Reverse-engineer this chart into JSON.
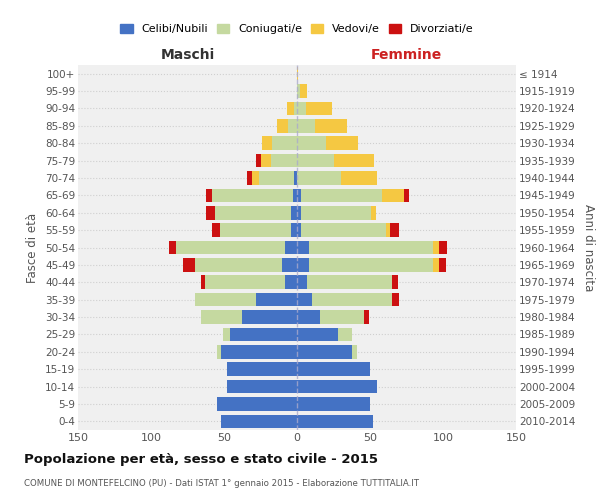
{
  "age_groups": [
    "0-4",
    "5-9",
    "10-14",
    "15-19",
    "20-24",
    "25-29",
    "30-34",
    "35-39",
    "40-44",
    "45-49",
    "50-54",
    "55-59",
    "60-64",
    "65-69",
    "70-74",
    "75-79",
    "80-84",
    "85-89",
    "90-94",
    "95-99",
    "100+"
  ],
  "birth_years": [
    "2010-2014",
    "2005-2009",
    "2000-2004",
    "1995-1999",
    "1990-1994",
    "1985-1989",
    "1980-1984",
    "1975-1979",
    "1970-1974",
    "1965-1969",
    "1960-1964",
    "1955-1959",
    "1950-1954",
    "1945-1949",
    "1940-1944",
    "1935-1939",
    "1930-1934",
    "1925-1929",
    "1920-1924",
    "1915-1919",
    "≤ 1914"
  ],
  "maschi": {
    "celibi": [
      52,
      55,
      48,
      48,
      52,
      46,
      38,
      28,
      8,
      10,
      8,
      4,
      4,
      3,
      2,
      0,
      0,
      0,
      0,
      0,
      0
    ],
    "coniugati": [
      0,
      0,
      0,
      0,
      3,
      5,
      28,
      42,
      55,
      60,
      75,
      49,
      52,
      55,
      24,
      18,
      17,
      6,
      2,
      0,
      0
    ],
    "vedovi": [
      0,
      0,
      0,
      0,
      0,
      0,
      0,
      0,
      0,
      0,
      0,
      0,
      0,
      0,
      5,
      7,
      7,
      8,
      5,
      0,
      0
    ],
    "divorziati": [
      0,
      0,
      0,
      0,
      0,
      0,
      0,
      0,
      3,
      8,
      5,
      5,
      6,
      4,
      3,
      3,
      0,
      0,
      0,
      0,
      0
    ]
  },
  "femmine": {
    "nubili": [
      52,
      50,
      55,
      50,
      38,
      28,
      16,
      10,
      7,
      8,
      8,
      3,
      3,
      3,
      0,
      0,
      0,
      0,
      0,
      0,
      0
    ],
    "coniugate": [
      0,
      0,
      0,
      0,
      3,
      10,
      30,
      55,
      58,
      85,
      85,
      58,
      48,
      55,
      30,
      25,
      20,
      12,
      6,
      2,
      0
    ],
    "vedove": [
      0,
      0,
      0,
      0,
      0,
      0,
      0,
      0,
      0,
      4,
      4,
      3,
      3,
      15,
      25,
      28,
      22,
      22,
      18,
      5,
      1
    ],
    "divorziate": [
      0,
      0,
      0,
      0,
      0,
      0,
      3,
      5,
      4,
      5,
      6,
      6,
      0,
      4,
      0,
      0,
      0,
      0,
      0,
      0,
      0
    ]
  },
  "colors": {
    "celibi_nubili": "#4472C4",
    "coniugati": "#C5D9A0",
    "vedovi": "#F5C842",
    "divorziati": "#CC1111"
  },
  "title": "Popolazione per età, sesso e stato civile - 2015",
  "subtitle": "COMUNE DI MONTEFELCINO (PU) - Dati ISTAT 1° gennaio 2015 - Elaborazione TUTTITALIA.IT",
  "xlabel_left": "Maschi",
  "xlabel_right": "Femmine",
  "ylabel_left": "Fasce di età",
  "ylabel_right": "Anni di nascita",
  "xlim": 150,
  "legend_labels": [
    "Celibi/Nubili",
    "Coniugati/e",
    "Vedovi/e",
    "Divorziati/e"
  ],
  "bg_color": "#f0f0f0"
}
